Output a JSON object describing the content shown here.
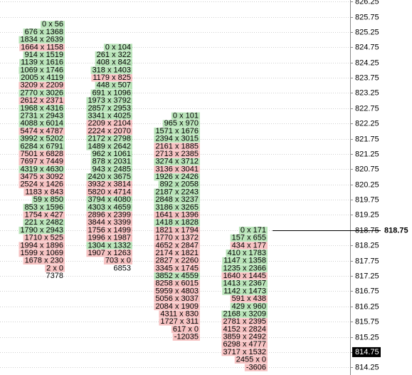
{
  "chart_data": {
    "type": "footprint",
    "ylim": [
      814.0,
      826.3
    ],
    "yticks": [
      814.25,
      814.75,
      815.25,
      815.75,
      816.25,
      816.75,
      817.25,
      817.75,
      818.25,
      818.75,
      819.25,
      819.75,
      820.25,
      820.75,
      821.25,
      821.75,
      822.25,
      822.75,
      823.25,
      823.75,
      824.25,
      824.75,
      825.25,
      825.75,
      826.25
    ],
    "grid": true,
    "up_color": "#b9e4b9",
    "down_color": "#f6c2c2",
    "columns": [
      {
        "prices": [
          825.5,
          825.25,
          825,
          824.75,
          824.5,
          824.25,
          824,
          823.75,
          823.5,
          823.25,
          823,
          822.75,
          822.5,
          822.25,
          822,
          821.75,
          821.5,
          821.25,
          821,
          820.75,
          820.5,
          820.25,
          820,
          819.75,
          819.5,
          819.25,
          819,
          818.75,
          818.5,
          818.25,
          818,
          817.75,
          817.5
        ],
        "bid": [
          0,
          676,
          1834,
          1664,
          914,
          1139,
          1069,
          2005,
          3209,
          2770,
          2612,
          1968,
          2731,
          4088,
          5474,
          3992,
          6284,
          7501,
          7697,
          4319,
          3475,
          2524,
          1183,
          59,
          853,
          1754,
          221,
          1790,
          1710,
          1994,
          1599,
          1678,
          2
        ],
        "ask": [
          56,
          1368,
          2639,
          1158,
          1519,
          1616,
          1746,
          4119,
          2209,
          3026,
          2371,
          4316,
          2943,
          6014,
          4787,
          5202,
          6791,
          6828,
          7449,
          4630,
          3092,
          1426,
          843,
          850,
          1596,
          427,
          2482,
          2943,
          525,
          1896,
          1069,
          230,
          0
        ],
        "cell_labels": [
          "0 x 56",
          "676 x 1368",
          "1834 x 2639",
          "1664 x 1158",
          "914 x 1519",
          "1139 x 1616",
          "1069 x 1746",
          "2005 x 4119",
          "3209 x 2209",
          "2770 x 3026",
          "2612 x 2371",
          "1968 x 4316",
          "2731 x 2943",
          "4088 x 6014",
          "5474 x 4787",
          "3992 x 5202",
          "6284 x 6791",
          "7501 x 6828",
          "7697 x 7449",
          "4319 x 4630",
          "3475 x 3092",
          "2524 x 1426",
          "1183 x 843",
          "59 x 850",
          "853 x 1596",
          "1754 x 427",
          "221 x 2482",
          "1790 x 2943",
          "1710 x 525",
          "1994 x 1896",
          "1599 x 1069",
          "1678 x 230",
          "2 x 0"
        ],
        "delta": {
          "value": 7378,
          "price": 817.25
        }
      },
      {
        "prices": [
          824.75,
          824.5,
          824.25,
          824,
          823.75,
          823.5,
          823.25,
          823,
          822.75,
          822.5,
          822.25,
          822,
          821.75,
          821.5,
          821.25,
          821,
          820.75,
          820.5,
          820.25,
          820,
          819.75,
          819.5,
          819.25,
          819,
          818.75,
          818.5,
          818.25,
          818,
          817.75
        ],
        "bid": [
          0,
          261,
          408,
          318,
          1179,
          448,
          691,
          1973,
          2857,
          3341,
          2209,
          2224,
          2172,
          1489,
          962,
          878,
          943,
          2420,
          3932,
          5820,
          3794,
          4303,
          2896,
          3844,
          1756,
          1996,
          1304,
          1907,
          703
        ],
        "ask": [
          104,
          322,
          842,
          1403,
          825,
          507,
          1096,
          3792,
          2953,
          4025,
          2104,
          2070,
          2798,
          2642,
          1061,
          2031,
          2485,
          3675,
          3814,
          4714,
          4080,
          4659,
          2399,
          3399,
          1499,
          1987,
          1332,
          1263,
          0
        ],
        "cell_labels": [
          "0 x 104",
          "261 x 322",
          "408 x 842",
          "318 x 1403",
          "1179 x 825",
          "448 x 507",
          "691 x 1096",
          "1973 x 3792",
          "2857 x 2953",
          "3341 x 4025",
          "2209 x 2104",
          "2224 x 2070",
          "2172 x 2798",
          "1489 x 2642",
          "962 x 1061",
          "878 x 2031",
          "943 x 2485",
          "2420 x 3675",
          "3932 x 3814",
          "5820 x 4714",
          "3794 x 4080",
          "4303 x 4659",
          "2896 x 2399",
          "3844 x 3399",
          "1756 x 1499",
          "1996 x 1987",
          "1304 x 1332",
          "1907 x 1263",
          "703 x 0"
        ],
        "delta": {
          "value": 6853,
          "price": 817.5
        }
      },
      {
        "prices": [
          822.5,
          822.25,
          822,
          821.75,
          821.5,
          821.25,
          821,
          820.75,
          820.5,
          820.25,
          820,
          819.75,
          819.5,
          819.25,
          819,
          818.75,
          818.5,
          818.25,
          818,
          817.75,
          817.5,
          817.25,
          817,
          816.75,
          816.5,
          816.25,
          816,
          815.75,
          815.5
        ],
        "bid": [
          0,
          965,
          1571,
          2394,
          2161,
          2713,
          3274,
          3136,
          1926,
          892,
          2187,
          2848,
          3186,
          1641,
          1418,
          1821,
          1770,
          4652,
          2174,
          2827,
          3345,
          3852,
          8258,
          5959,
          5056,
          2084,
          4311,
          1727,
          617
        ],
        "ask": [
          101,
          970,
          1676,
          3015,
          1885,
          2385,
          3712,
          3041,
          2426,
          2058,
          2243,
          3237,
          3265,
          1396,
          1828,
          1794,
          1372,
          2847,
          1821,
          2260,
          1745,
          4559,
          6015,
          4803,
          3037,
          1909,
          830,
          311,
          0
        ],
        "cell_labels": [
          "0 x 101",
          "965 x 970",
          "1571 x 1676",
          "2394 x 3015",
          "2161 x 1885",
          "2713 x 2385",
          "3274 x 3712",
          "3136 x 3041",
          "1926 x 2426",
          "892 x 2058",
          "2187 x 2243",
          "2848 x 3237",
          "3186 x 3265",
          "1641 x 1396",
          "1418 x 1828",
          "1821 x 1794",
          "1770 x 1372",
          "4652 x 2847",
          "2174 x 1821",
          "2827 x 2260",
          "3345 x 1745",
          "3852 x 4559",
          "8258 x 6015",
          "5959 x 4803",
          "5056 x 3037",
          "2084 x 1909",
          "4311 x 830",
          "1727 x 311",
          "617 x 0"
        ],
        "delta": {
          "value": -12035,
          "price": 815.25
        }
      },
      {
        "prices": [
          818.75,
          818.5,
          818.25,
          818,
          817.75,
          817.5,
          817.25,
          817,
          816.75,
          816.5,
          816.25,
          816,
          815.75,
          815.5,
          815.25,
          815,
          814.75,
          814.5
        ],
        "bid": [
          0,
          157,
          434,
          410,
          1147,
          1235,
          1640,
          1413,
          1142,
          591,
          429,
          2168,
          2781,
          4152,
          3859,
          6298,
          3717,
          2455
        ],
        "ask": [
          171,
          655,
          177,
          1783,
          1358,
          2366,
          1445,
          2367,
          1473,
          438,
          960,
          3209,
          2395,
          2824,
          2492,
          4777,
          1532,
          0
        ],
        "cell_labels": [
          "0 x 171",
          "157 x 655",
          "434 x 177",
          "410 x 1783",
          "1147 x 1358",
          "1235 x 2366",
          "1640 x 1445",
          "1413 x 2367",
          "1142 x 1473",
          "591 x 438",
          "429 x 960",
          "2168 x 3209",
          "2781 x 2395",
          "4152 x 2824",
          "3859 x 2492",
          "6298 x 4777",
          "3717 x 1532",
          "2455 x 0"
        ],
        "delta": {
          "value": -3606,
          "price": 814.25
        }
      }
    ],
    "marker_line": {
      "value": 818.75
    },
    "last_price": {
      "value": 814.75
    }
  }
}
